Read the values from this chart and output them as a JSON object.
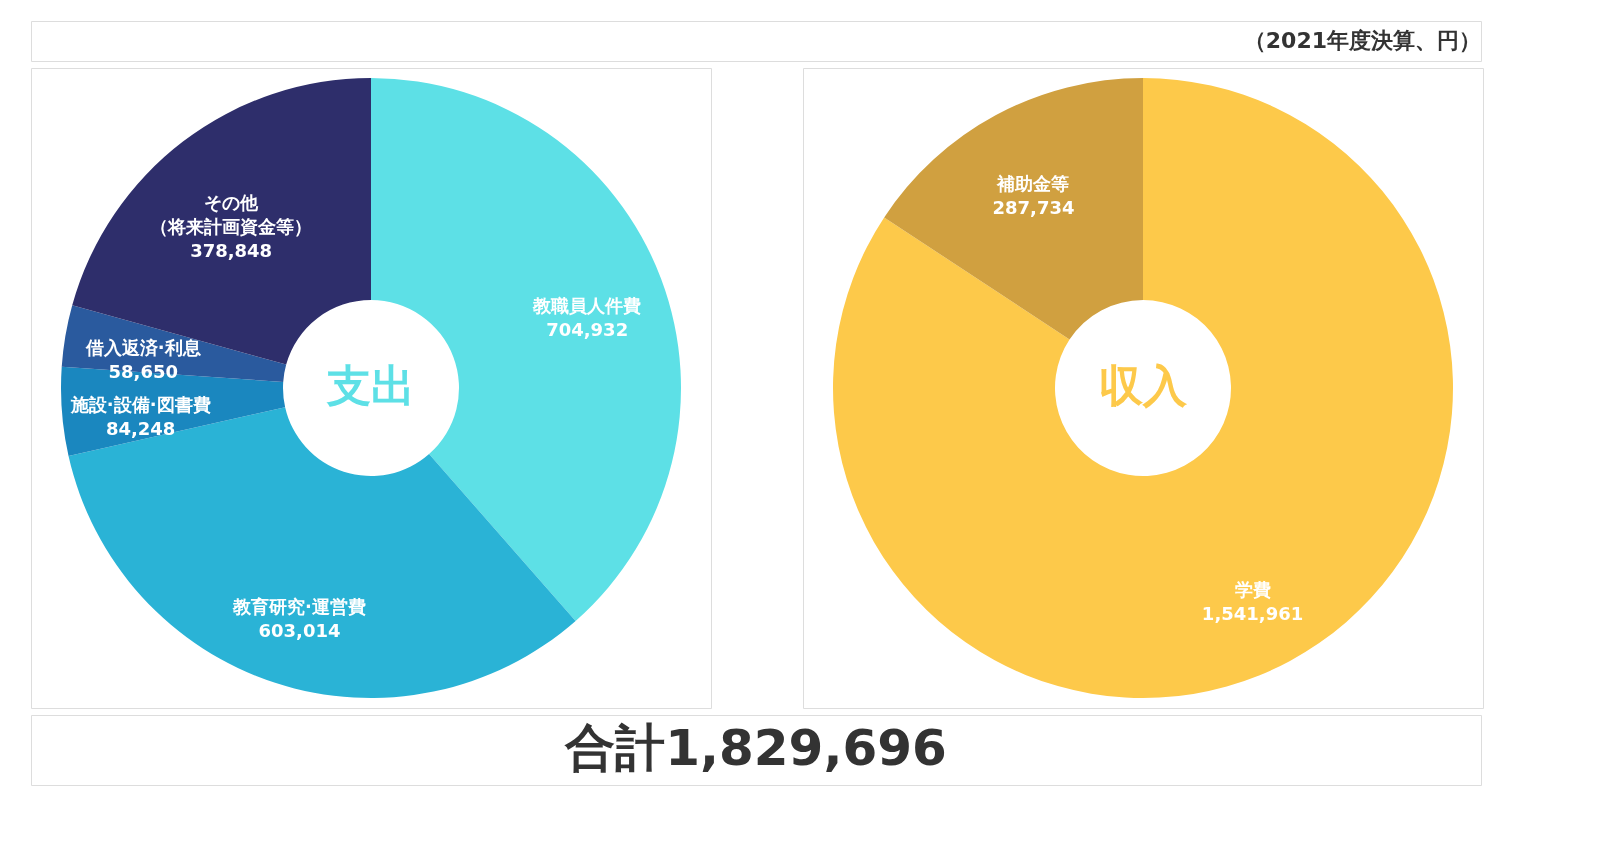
{
  "chart_data": [
    {
      "type": "donut",
      "title": "支出",
      "categories": [
        "教職員人件費",
        "教育研究·運営費",
        "施設·設備·図書費",
        "借入返済·利息",
        "その他（将来計画資金等）"
      ],
      "values": [
        704932,
        603014,
        84248,
        58650,
        378848
      ],
      "value_labels": [
        "704,932",
        "603,014",
        "84,248",
        "58,650",
        "378,848"
      ],
      "colors": [
        "#5de0e6",
        "#2ab3d6",
        "#1a87bf",
        "#2a5a9e",
        "#2e2e6b"
      ],
      "legend": false,
      "annotations": [
        "合計1,829,696"
      ]
    },
    {
      "type": "donut",
      "title": "収入",
      "categories": [
        "学費",
        "補助金等"
      ],
      "values": [
        1541961,
        287734
      ],
      "value_labels": [
        "1,541,961",
        "287,734"
      ],
      "colors": [
        "#fdc94a",
        "#d0a040"
      ],
      "legend": false,
      "annotations": [
        "（2021年度決算、円）"
      ]
    }
  ]
}
